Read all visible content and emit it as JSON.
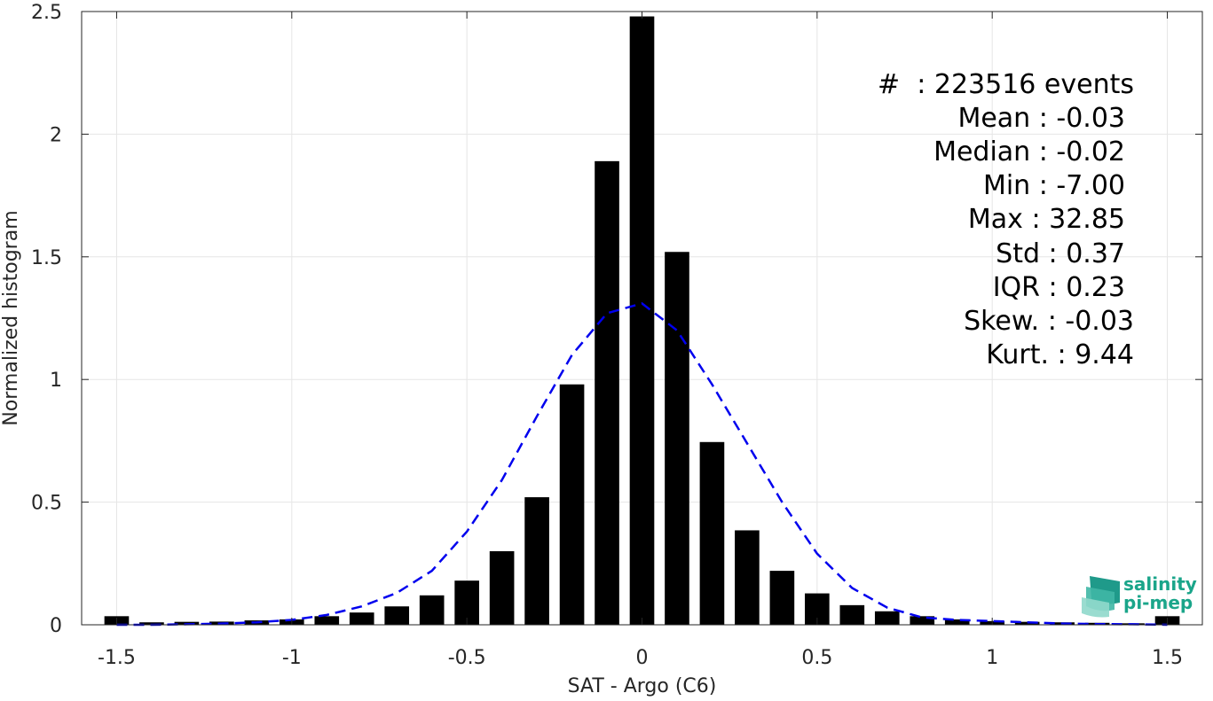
{
  "chart_data": {
    "type": "bar",
    "xlabel": "SAT - Argo (C6)",
    "ylabel": "Normalized histogram",
    "xlim": [
      -1.6,
      1.6
    ],
    "ylim": [
      0,
      2.5
    ],
    "xticks": [
      -1.5,
      -1,
      -0.5,
      0,
      0.5,
      1,
      1.5
    ],
    "xtick_labels": [
      "-1.5",
      "-1",
      "-0.5",
      "0",
      "0.5",
      "1",
      "1.5"
    ],
    "yticks": [
      0,
      0.5,
      1,
      1.5,
      2,
      2.5
    ],
    "ytick_labels": [
      "0",
      "0.5",
      "1",
      "1.5",
      "2",
      "2.5"
    ],
    "grid": true,
    "bar_color": "#000000",
    "bar_width": 0.07,
    "series": [
      {
        "x": [
          -1.5,
          -1.4,
          -1.3,
          -1.2,
          -1.1,
          -1.0,
          -0.9,
          -0.8,
          -0.7,
          -0.6,
          -0.5,
          -0.4,
          -0.3,
          -0.2,
          -0.1,
          0.0,
          0.1,
          0.2,
          0.3,
          0.4,
          0.5,
          0.6,
          0.7,
          0.8,
          0.9,
          1.0,
          1.1,
          1.2,
          1.3,
          1.4,
          1.5
        ],
        "values": [
          0.035,
          0.01,
          0.012,
          0.013,
          0.018,
          0.022,
          0.035,
          0.05,
          0.075,
          0.12,
          0.18,
          0.3,
          0.52,
          0.98,
          1.89,
          2.48,
          1.52,
          0.745,
          0.385,
          0.22,
          0.128,
          0.08,
          0.055,
          0.035,
          0.022,
          0.015,
          0.012,
          0.01,
          0.008,
          0.006,
          0.035
        ]
      },
      {
        "style": "dashed",
        "color": "#0000ee",
        "x": [
          -1.5,
          -1.4,
          -1.3,
          -1.2,
          -1.1,
          -1.0,
          -0.9,
          -0.8,
          -0.7,
          -0.6,
          -0.5,
          -0.4,
          -0.3,
          -0.2,
          -0.1,
          0.0,
          0.1,
          0.2,
          0.3,
          0.4,
          0.5,
          0.6,
          0.7,
          0.8,
          0.9,
          1.0,
          1.1,
          1.2,
          1.3,
          1.4,
          1.5
        ],
        "values": [
          0.0,
          0.0,
          0.002,
          0.005,
          0.01,
          0.02,
          0.04,
          0.075,
          0.13,
          0.22,
          0.38,
          0.59,
          0.85,
          1.1,
          1.27,
          1.31,
          1.2,
          0.98,
          0.74,
          0.5,
          0.29,
          0.15,
          0.07,
          0.03,
          0.02,
          0.015,
          0.01,
          0.005,
          0.003,
          0.002,
          0.0
        ]
      }
    ]
  },
  "stats": [
    "#  : 223516 events",
    "Mean : -0.03",
    "Median : -0.02",
    "Min : -7.00",
    "Max : 32.85",
    "Std : 0.37",
    "IQR : 0.23",
    "Skew. : -0.03",
    "Kurt. : 9.44"
  ],
  "logo": {
    "line1": "salinity",
    "line2": "pi-mep"
  }
}
